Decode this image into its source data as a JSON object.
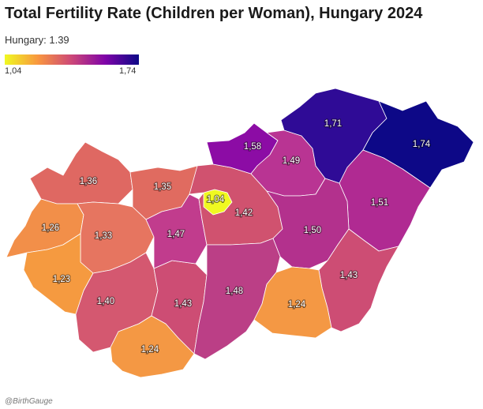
{
  "title": "Total Fertility Rate (Children per Woman), Hungary 2024",
  "subtitle": "Hungary: 1.39",
  "legend": {
    "min_label": "1,04",
    "max_label": "1,74"
  },
  "credit": "@BirthGauge",
  "regions": [
    {
      "value": "1,36",
      "color": "#df6862"
    },
    {
      "value": "1,35",
      "color": "#e06b60"
    },
    {
      "value": "1,26",
      "color": "#f28f49"
    },
    {
      "value": "1,33",
      "color": "#e67560"
    },
    {
      "value": "1,23",
      "color": "#f59a40"
    },
    {
      "value": "1,40",
      "color": "#d45870"
    },
    {
      "value": "1,24",
      "color": "#f49844"
    },
    {
      "value": "1,43",
      "color": "#cd4d74"
    },
    {
      "value": "1,47",
      "color": "#c13c8d"
    },
    {
      "value": "1,04",
      "color": "#f0f921"
    },
    {
      "value": "1,42",
      "color": "#d0526f"
    },
    {
      "value": "1,58",
      "color": "#8c0ca5"
    },
    {
      "value": "1,49",
      "color": "#b93493"
    },
    {
      "value": "1,71",
      "color": "#2f0b96"
    },
    {
      "value": "1,74",
      "color": "#0d0887"
    },
    {
      "value": "1,51",
      "color": "#b02a92"
    },
    {
      "value": "1,50",
      "color": "#b3318d"
    },
    {
      "value": "1,48",
      "color": "#bb3f86"
    },
    {
      "value": "1,43",
      "color": "#cd4d74"
    },
    {
      "value": "1,24",
      "color": "#f49844"
    }
  ]
}
